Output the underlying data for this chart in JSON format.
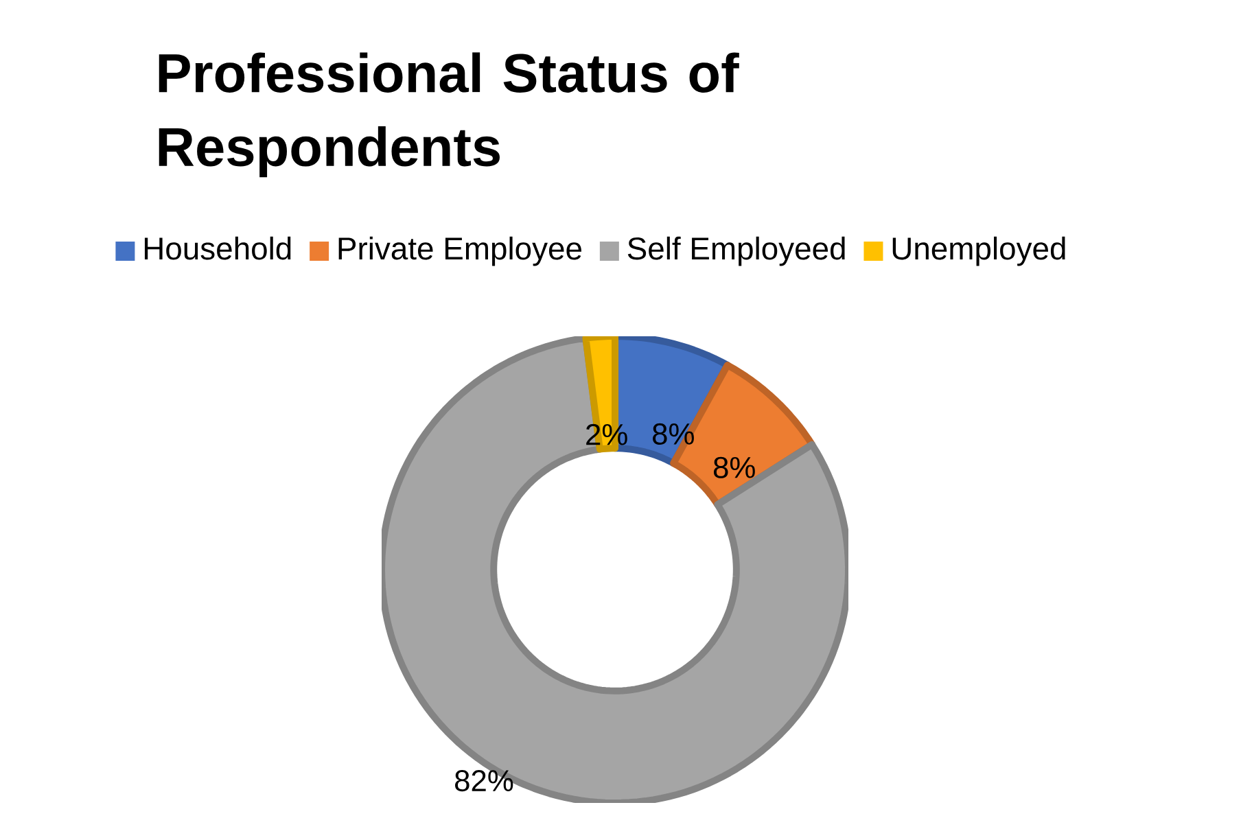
{
  "chart_data": {
    "type": "donut",
    "title": "Professional Status of Respondents",
    "categories": [
      "Household",
      "Private Employee",
      "Self Employeed",
      "Unemployed"
    ],
    "values": [
      8,
      8,
      82,
      2
    ],
    "colors": [
      "#4472c4",
      "#ed7d31",
      "#a5a5a5",
      "#ffc000"
    ],
    "value_labels": [
      "8%",
      "8%",
      "82%",
      "2%"
    ],
    "legend": "top"
  }
}
